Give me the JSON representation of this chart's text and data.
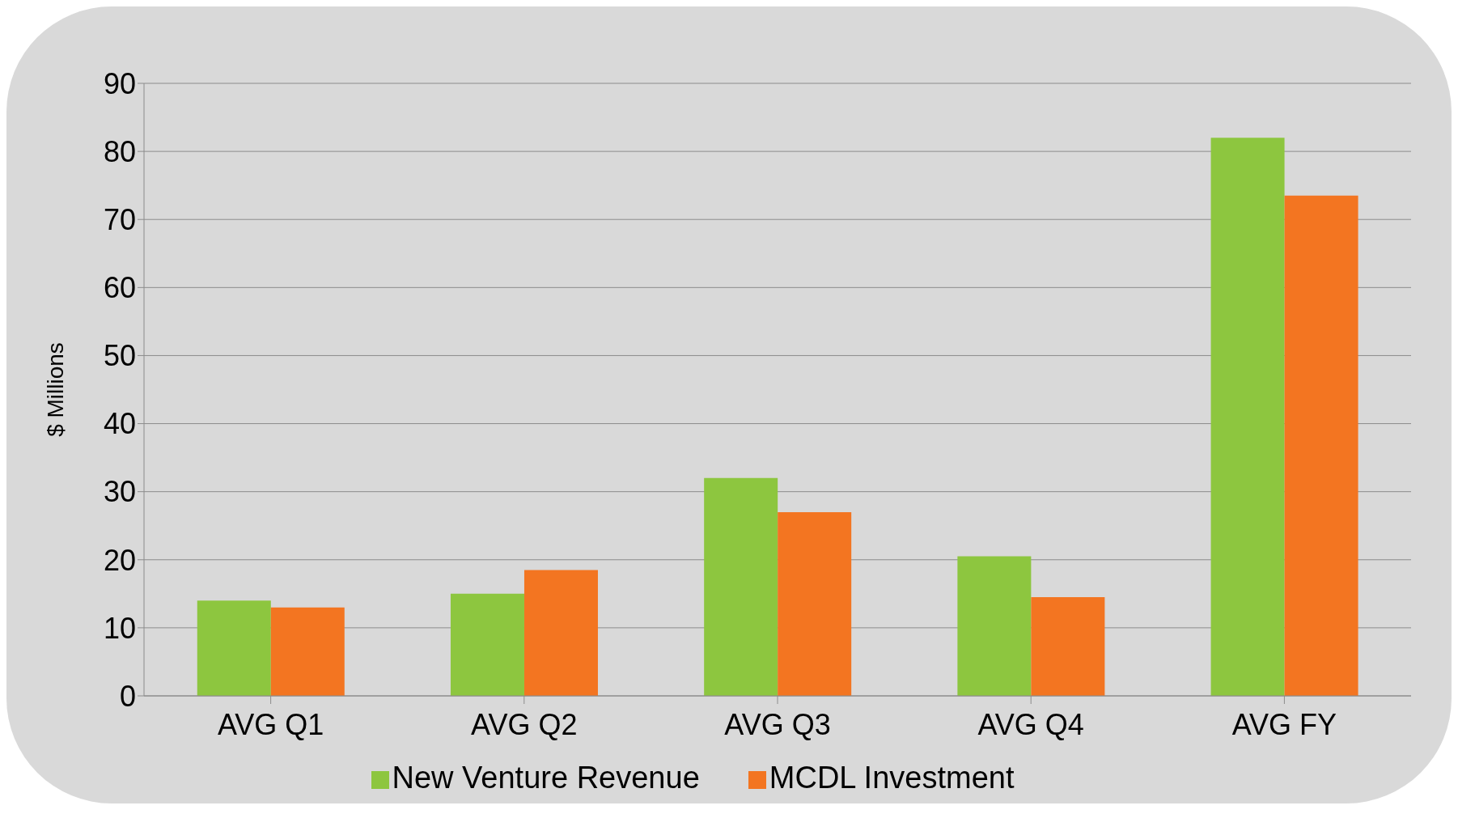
{
  "chart_data": {
    "type": "bar",
    "ylabel": "$ Millions",
    "categories": [
      "AVG Q1",
      "AVG Q2",
      "AVG Q3",
      "AVG Q4",
      "AVG FY"
    ],
    "series": [
      {
        "name": "New Venture Revenue",
        "color": "#8dc63f",
        "values": [
          14,
          15,
          32,
          20.5,
          82
        ]
      },
      {
        "name": "MCDL Investment",
        "color": "#f37521",
        "values": [
          13,
          18.5,
          27,
          14.5,
          73.5
        ]
      }
    ],
    "ylim": [
      0,
      90
    ],
    "yticks": [
      0,
      10,
      20,
      30,
      40,
      50,
      60,
      70,
      80,
      90
    ],
    "grid": "y",
    "legend": "bottom"
  }
}
